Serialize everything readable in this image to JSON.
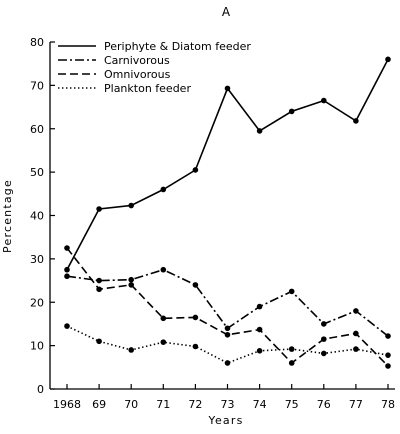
{
  "chart_data": {
    "type": "line",
    "panel_label": "A",
    "xlabel": "Years",
    "ylabel": "Percentage",
    "x": [
      "1968",
      "69",
      "70",
      "71",
      "72",
      "73",
      "74",
      "75",
      "76",
      "77",
      "78"
    ],
    "ylim": [
      0,
      80
    ],
    "yticks": [
      0,
      10,
      20,
      30,
      40,
      50,
      60,
      70,
      80
    ],
    "grid": false,
    "legend_position": "top-left",
    "series": [
      {
        "name": "Periphyte & Diatom feeder",
        "dash": "solid",
        "values": [
          27.5,
          41.5,
          42.3,
          46,
          50.5,
          69.3,
          59.5,
          64,
          66.5,
          61.8,
          76
        ]
      },
      {
        "name": "Carnivorous",
        "dash": "dashdot",
        "values": [
          26,
          25,
          25.2,
          27.5,
          24,
          14,
          19,
          22.5,
          15,
          18,
          12.2
        ]
      },
      {
        "name": "Omnivorous",
        "dash": "dashed",
        "values": [
          32.5,
          23,
          24,
          16.3,
          16.5,
          12.5,
          13.7,
          6,
          11.5,
          12.8,
          5.3
        ]
      },
      {
        "name": "Plankton feeder",
        "dash": "dotted",
        "values": [
          14.5,
          11,
          9,
          10.8,
          9.8,
          6,
          8.8,
          9.2,
          8.2,
          9.2,
          7.8
        ]
      }
    ]
  }
}
